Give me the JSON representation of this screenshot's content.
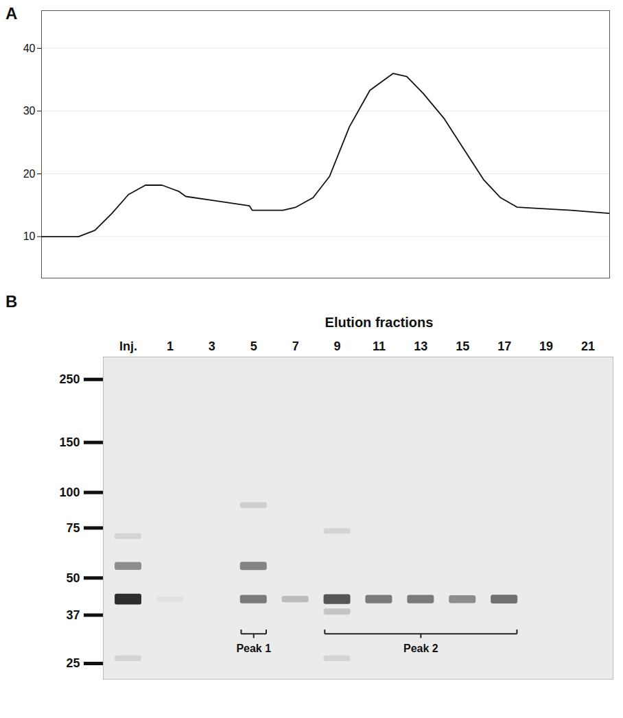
{
  "chart_data": {
    "type": "line",
    "panel": "A",
    "x": [
      0,
      6.5,
      9.4,
      12.4,
      15.3,
      18.3,
      21.2,
      24.2,
      25.4,
      30.7,
      36.6,
      37.1,
      42.5,
      44.8,
      47.8,
      50.7,
      54.2,
      57.8,
      61.9,
      64.3,
      67.2,
      70.8,
      74.3,
      77.8,
      80.8,
      83.7,
      87.3,
      93.2,
      100
    ],
    "values": [
      10.0,
      10.0,
      11.0,
      13.7,
      16.7,
      18.2,
      18.2,
      17.2,
      16.4,
      15.7,
      14.9,
      14.2,
      14.2,
      14.7,
      16.2,
      19.6,
      27.5,
      33.3,
      36.0,
      35.5,
      32.8,
      28.9,
      24.0,
      19.1,
      16.2,
      14.7,
      14.5,
      14.2,
      13.7
    ],
    "color": "#111111",
    "xlim": [
      0,
      100
    ],
    "ylim": [
      3.4,
      46
    ],
    "yticks": [
      10,
      20,
      30,
      40
    ],
    "grid": true,
    "tick_labels": "y"
  },
  "gel": {
    "panel": "B",
    "title": "Elution fractions",
    "lanes": [
      "Inj.",
      "1",
      "3",
      "5",
      "7",
      "9",
      "11",
      "13",
      "15",
      "17",
      "19",
      "21"
    ],
    "markers": [
      250,
      150,
      100,
      75,
      50,
      37,
      25
    ],
    "ylim": [
      22,
      300
    ],
    "bands": [
      {
        "lane": "Inj.",
        "mw": 42,
        "intensity": 1.0
      },
      {
        "lane": "Inj.",
        "mw": 55,
        "intensity": 0.5
      },
      {
        "lane": "Inj.",
        "mw": 70,
        "intensity": 0.12
      },
      {
        "lane": "Inj.",
        "mw": 26,
        "intensity": 0.12
      },
      {
        "lane": "1",
        "mw": 42,
        "intensity": 0.05
      },
      {
        "lane": "5",
        "mw": 90,
        "intensity": 0.15
      },
      {
        "lane": "5",
        "mw": 55,
        "intensity": 0.55
      },
      {
        "lane": "5",
        "mw": 42,
        "intensity": 0.6
      },
      {
        "lane": "7",
        "mw": 42,
        "intensity": 0.25
      },
      {
        "lane": "9",
        "mw": 73,
        "intensity": 0.12
      },
      {
        "lane": "9",
        "mw": 42,
        "intensity": 0.8
      },
      {
        "lane": "9",
        "mw": 38,
        "intensity": 0.2
      },
      {
        "lane": "9",
        "mw": 26,
        "intensity": 0.12
      },
      {
        "lane": "11",
        "mw": 42,
        "intensity": 0.6
      },
      {
        "lane": "13",
        "mw": 42,
        "intensity": 0.6
      },
      {
        "lane": "15",
        "mw": 42,
        "intensity": 0.5
      },
      {
        "lane": "17",
        "mw": 42,
        "intensity": 0.65
      }
    ],
    "brackets": [
      {
        "label": "Peak 1",
        "from": "5",
        "to": "5"
      },
      {
        "label": "Peak 2",
        "from": "9",
        "to": "17"
      }
    ]
  }
}
